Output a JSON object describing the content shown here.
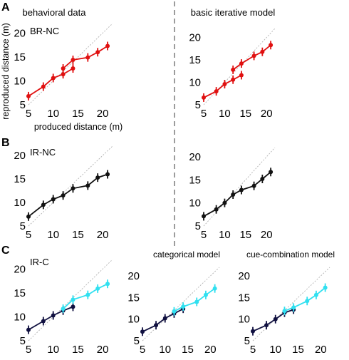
{
  "figure": {
    "column_titles": [
      "behavioral data",
      "basic iterative model"
    ],
    "panel_letters": [
      "A",
      "B",
      "C"
    ],
    "condition_labels": [
      "BR-NC",
      "IR-NC",
      "IR-C"
    ],
    "model_titles": [
      "categorical model",
      "cue-combination model"
    ],
    "ylabel": "reproduced distance (m)",
    "xlabel": "produced distance (m)",
    "colors": {
      "red": "#e01010",
      "black": "#111111",
      "navy": "#101040",
      "cyan": "#30e0f0",
      "identity": "#b4b4b4",
      "divider": "#666666"
    }
  },
  "chart_data": [
    {
      "type": "line",
      "panel": "A",
      "condition": "BR-NC",
      "source": "behavioral data",
      "xlim": [
        5,
        22
      ],
      "ylim": [
        5,
        22
      ],
      "xticks": [
        5,
        10,
        15,
        20
      ],
      "yticks": [
        5,
        10,
        15,
        20
      ],
      "identity_line": true,
      "series": [
        {
          "x": [
            5,
            8,
            10,
            12,
            14
          ],
          "y": [
            6.8,
            8.8,
            10.6,
            11.4,
            12.6
          ],
          "color": "#e01010"
        },
        {
          "x": [
            12,
            14,
            17,
            19,
            21
          ],
          "y": [
            12.6,
            14.4,
            14.9,
            16.0,
            17.3
          ],
          "color": "#e01010"
        }
      ]
    },
    {
      "type": "line",
      "panel": "A",
      "condition": "BR-NC",
      "source": "basic iterative model",
      "xlim": [
        5,
        22
      ],
      "ylim": [
        5,
        22
      ],
      "xticks": [
        5,
        10,
        15,
        20
      ],
      "yticks": [
        5,
        10,
        15,
        20
      ],
      "identity_line": true,
      "series": [
        {
          "x": [
            5,
            8,
            10,
            12,
            14
          ],
          "y": [
            6.6,
            8.0,
            9.6,
            10.6,
            11.6
          ],
          "color": "#e01010"
        },
        {
          "x": [
            12,
            14,
            17,
            19,
            21
          ],
          "y": [
            12.8,
            14.2,
            15.9,
            16.8,
            18.3
          ],
          "color": "#e01010"
        }
      ]
    },
    {
      "type": "line",
      "panel": "B",
      "condition": "IR-NC",
      "source": "behavioral data",
      "xlim": [
        5,
        22
      ],
      "ylim": [
        5,
        22
      ],
      "xticks": [
        5,
        10,
        15,
        20
      ],
      "yticks": [
        5,
        10,
        15,
        20
      ],
      "identity_line": true,
      "series": [
        {
          "x": [
            5,
            8,
            10,
            12,
            14,
            17,
            19,
            21
          ],
          "y": [
            7.0,
            9.5,
            10.7,
            11.5,
            13.0,
            13.6,
            15.3,
            16.0
          ],
          "color": "#111111"
        }
      ]
    },
    {
      "type": "line",
      "panel": "B",
      "condition": "IR-NC",
      "source": "basic iterative model",
      "xlim": [
        5,
        22
      ],
      "ylim": [
        5,
        22
      ],
      "xticks": [
        5,
        10,
        15,
        20
      ],
      "yticks": [
        5,
        10,
        15,
        20
      ],
      "identity_line": true,
      "series": [
        {
          "x": [
            5,
            8,
            10,
            12,
            14,
            17,
            19,
            21
          ],
          "y": [
            7.1,
            8.6,
            10.0,
            11.8,
            12.8,
            13.7,
            15.2,
            16.7
          ],
          "color": "#111111"
        }
      ]
    },
    {
      "type": "line",
      "panel": "C",
      "condition": "IR-C",
      "source": "behavioral data",
      "xlim": [
        5,
        22
      ],
      "ylim": [
        5,
        22
      ],
      "xticks": [
        5,
        10,
        15,
        20
      ],
      "yticks": [
        5,
        10,
        15,
        20
      ],
      "identity_line": true,
      "series": [
        {
          "x": [
            5,
            8,
            10,
            12,
            14
          ],
          "y": [
            7.3,
            9.1,
            10.3,
            11.3,
            12.1
          ],
          "color": "#101040"
        },
        {
          "x": [
            12,
            14,
            17,
            19,
            21
          ],
          "y": [
            11.7,
            13.6,
            14.6,
            15.9,
            16.9
          ],
          "color": "#30e0f0"
        }
      ]
    },
    {
      "type": "line",
      "panel": "C",
      "condition": "IR-C",
      "source": "categorical model",
      "xlim": [
        5,
        22
      ],
      "ylim": [
        5,
        22
      ],
      "xticks": [
        5,
        10,
        15,
        20
      ],
      "yticks": [
        5,
        10,
        15,
        20
      ],
      "identity_line": true,
      "series": [
        {
          "x": [
            5,
            8,
            10,
            12,
            14
          ],
          "y": [
            7.1,
            8.6,
            10.2,
            11.3,
            12.4
          ],
          "color": "#101040"
        },
        {
          "x": [
            12,
            14,
            17,
            19,
            21
          ],
          "y": [
            11.8,
            12.9,
            14.0,
            15.6,
            17.1
          ],
          "color": "#30e0f0"
        }
      ]
    },
    {
      "type": "line",
      "panel": "C",
      "condition": "IR-C",
      "source": "cue-combination model",
      "xlim": [
        5,
        22
      ],
      "ylim": [
        5,
        22
      ],
      "xticks": [
        5,
        10,
        15,
        20
      ],
      "yticks": [
        5,
        10,
        15,
        20
      ],
      "identity_line": true,
      "series": [
        {
          "x": [
            5,
            8,
            10,
            12,
            14
          ],
          "y": [
            7.2,
            8.6,
            10.0,
            11.5,
            12.2
          ],
          "color": "#101040"
        },
        {
          "x": [
            12,
            14,
            17,
            19,
            21
          ],
          "y": [
            11.9,
            12.7,
            14.2,
            15.6,
            17.3
          ],
          "color": "#30e0f0"
        }
      ]
    }
  ]
}
